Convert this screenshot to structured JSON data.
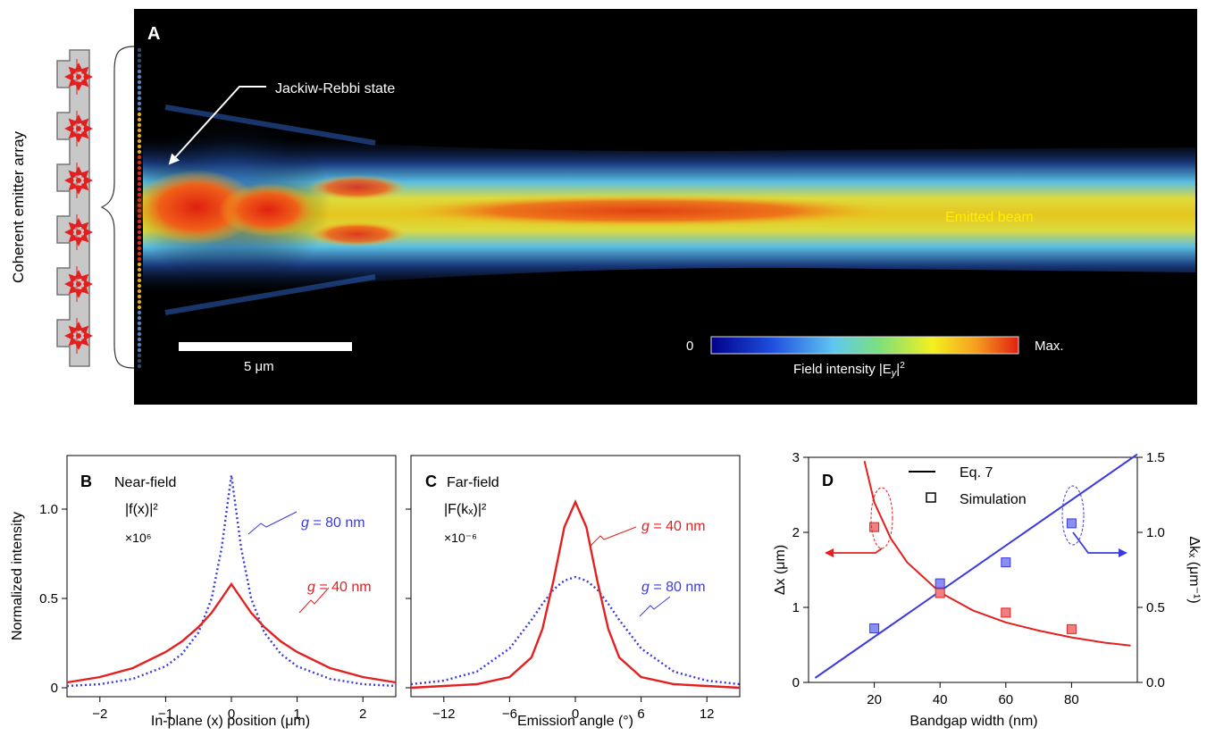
{
  "panel_a": {
    "letter": "A",
    "side_label": "Coherent emitter array",
    "callout": "Jackiw-Rebbi state",
    "beam_label": "Emitted beam",
    "scale_bar_label": "5 μm",
    "colorbar": {
      "min_label": "0",
      "max_label": "Max.",
      "title_prefix": "Field intensity |E",
      "title_sub": "y",
      "title_suffix": "|",
      "title_sup": "2"
    }
  },
  "colors": {
    "red": "#e32020",
    "blue": "#3b3bdc",
    "label_yellow": "#ffee00"
  },
  "chart_data": [
    {
      "panel": "B",
      "type": "line",
      "title": "Near-field",
      "formula": "|f(x)|²",
      "scale_note": "×10⁶",
      "xlabel": "In-plane (x) position (μm)",
      "ylabel": "Normalized intensity",
      "xlim": [
        -2.5,
        2.5
      ],
      "ylim": [
        -0.05,
        1.3
      ],
      "xticks": [
        -2,
        -1,
        0,
        1,
        2
      ],
      "yticks": [
        0,
        0.5,
        1.0
      ],
      "ytick_labels": [
        "0",
        "0.5",
        "1.0"
      ],
      "series": [
        {
          "name": "g = 80 nm",
          "style": "dotted",
          "color": "#3b3bdc",
          "x": [
            -2.5,
            -2,
            -1.5,
            -1,
            -0.75,
            -0.5,
            -0.3,
            -0.15,
            0,
            0.15,
            0.3,
            0.5,
            0.75,
            1,
            1.5,
            2,
            2.5
          ],
          "y": [
            0.01,
            0.02,
            0.05,
            0.12,
            0.19,
            0.31,
            0.5,
            0.78,
            1.19,
            0.78,
            0.5,
            0.31,
            0.19,
            0.12,
            0.05,
            0.02,
            0.01
          ]
        },
        {
          "name": "g = 40 nm",
          "style": "solid",
          "color": "#e32020",
          "x": [
            -2.5,
            -2,
            -1.5,
            -1,
            -0.75,
            -0.5,
            -0.3,
            -0.15,
            0,
            0.15,
            0.3,
            0.5,
            0.75,
            1,
            1.5,
            2,
            2.5
          ],
          "y": [
            0.03,
            0.06,
            0.11,
            0.2,
            0.26,
            0.34,
            0.42,
            0.5,
            0.58,
            0.5,
            0.42,
            0.34,
            0.26,
            0.2,
            0.11,
            0.06,
            0.03
          ]
        }
      ],
      "annotations": [
        {
          "text_prefix": "g",
          "text": " = 80 nm",
          "series": "g = 80 nm"
        },
        {
          "text_prefix": "g",
          "text": " = 40 nm",
          "series": "g = 40 nm"
        }
      ]
    },
    {
      "panel": "C",
      "type": "line",
      "title": "Far-field",
      "formula": "|F(kₓ)|²",
      "scale_note": "×10⁻⁶",
      "xlabel": "Emission angle (°)",
      "ylabel": "",
      "xlim": [
        -15,
        15
      ],
      "ylim": [
        -0.05,
        1.3
      ],
      "xticks": [
        -12,
        -6,
        0,
        6,
        12
      ],
      "series": [
        {
          "name": "g = 40 nm",
          "style": "solid",
          "color": "#e32020",
          "x": [
            -15,
            -12,
            -9,
            -6,
            -4,
            -3,
            -2,
            -1,
            0,
            1,
            2,
            3,
            4,
            6,
            9,
            12,
            15
          ],
          "y": [
            0,
            0.01,
            0.02,
            0.06,
            0.17,
            0.33,
            0.6,
            0.9,
            1.04,
            0.9,
            0.6,
            0.33,
            0.17,
            0.06,
            0.02,
            0.01,
            0
          ]
        },
        {
          "name": "g = 80 nm",
          "style": "dotted",
          "color": "#3b3bdc",
          "x": [
            -15,
            -12,
            -9,
            -6,
            -4,
            -3,
            -2,
            -1,
            0,
            1,
            2,
            3,
            4,
            6,
            9,
            12,
            15
          ],
          "y": [
            0.02,
            0.04,
            0.09,
            0.22,
            0.38,
            0.47,
            0.55,
            0.6,
            0.62,
            0.6,
            0.55,
            0.47,
            0.38,
            0.22,
            0.09,
            0.04,
            0.02
          ]
        }
      ],
      "annotations": [
        {
          "text_prefix": "g",
          "text": " = 40 nm",
          "series": "g = 40 nm"
        },
        {
          "text_prefix": "g",
          "text": " = 80 nm",
          "series": "g = 80 nm"
        }
      ]
    },
    {
      "panel": "D",
      "type": "scatter",
      "xlabel": "Bandgap width (nm)",
      "ylabel_left": "Δx (μm)",
      "ylabel_right": "Δkₓ (μm⁻¹)",
      "xlim": [
        0,
        100
      ],
      "ylim_left": [
        0,
        3
      ],
      "ylim_right": [
        0,
        1.5
      ],
      "xticks": [
        20,
        40,
        60,
        80
      ],
      "yticks_left": [
        0,
        1,
        2,
        3
      ],
      "yticks_right": [
        0.0,
        0.5,
        1.0,
        1.5
      ],
      "ytick_labels_right": [
        "0.0",
        "0.5",
        "1.0",
        "1.5"
      ],
      "legend": [
        {
          "label": "Eq. 7",
          "kind": "line"
        },
        {
          "label": "Simulation",
          "kind": "square"
        }
      ],
      "series": [
        {
          "name": "Eq. 7 (Δx)",
          "axis": "left",
          "style": "line",
          "color": "#e32020",
          "x": [
            17,
            20,
            25,
            30,
            40,
            50,
            60,
            70,
            80,
            90,
            98
          ],
          "y": [
            2.95,
            2.4,
            1.92,
            1.6,
            1.2,
            0.96,
            0.8,
            0.69,
            0.6,
            0.53,
            0.49
          ]
        },
        {
          "name": "Simulation (Δx)",
          "axis": "left",
          "style": "square",
          "color": "#e32020",
          "x": [
            20,
            40,
            60,
            80
          ],
          "y": [
            2.07,
            1.19,
            0.93,
            0.71
          ]
        },
        {
          "name": "Eq. 7 (Δkₓ)",
          "axis": "right",
          "style": "line",
          "color": "#3b3bdc",
          "x": [
            2,
            100
          ],
          "y": [
            0.03,
            1.52
          ]
        },
        {
          "name": "Simulation (Δkₓ)",
          "axis": "right",
          "style": "square",
          "color": "#3b3bdc",
          "x": [
            20,
            40,
            60,
            80
          ],
          "y": [
            0.36,
            0.66,
            0.8,
            1.06
          ]
        }
      ]
    }
  ]
}
